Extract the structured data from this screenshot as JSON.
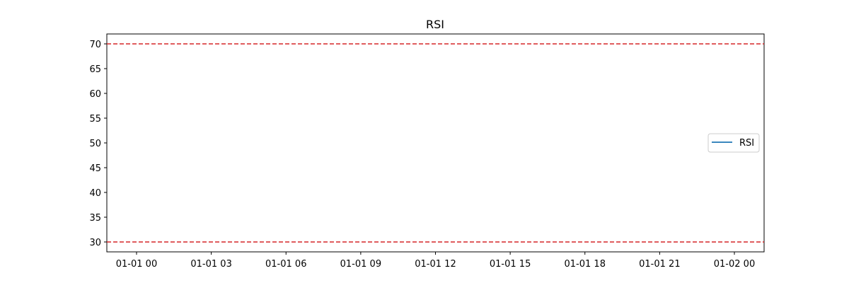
{
  "chart_data": {
    "type": "line",
    "title": "RSI",
    "xlabel": "",
    "ylabel": "",
    "x_ticks": [
      "01-01 00",
      "01-01 03",
      "01-01 06",
      "01-01 09",
      "01-01 12",
      "01-01 15",
      "01-01 18",
      "01-01 21",
      "01-02 00"
    ],
    "y_ticks": [
      30,
      35,
      40,
      45,
      50,
      55,
      60,
      65,
      70
    ],
    "ylim": [
      28,
      72
    ],
    "grid": false,
    "legend": {
      "placement": "center-right",
      "entries": [
        {
          "label": "RSI",
          "color": "#1f77b4"
        }
      ]
    },
    "series": [
      {
        "name": "RSI",
        "color": "#1f77b4",
        "values": []
      }
    ],
    "reference_lines": [
      {
        "y": 70,
        "color": "#d62728",
        "style": "dashed"
      },
      {
        "y": 30,
        "color": "#d62728",
        "style": "dashed"
      }
    ]
  }
}
